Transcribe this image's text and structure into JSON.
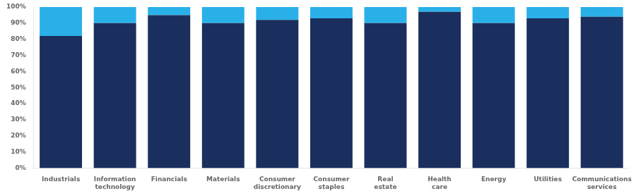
{
  "chart_data": {
    "type": "bar",
    "stacked": true,
    "grid": false,
    "categories": [
      "Industrials",
      "Information\ntechnology",
      "Financials",
      "Materials",
      "Consumer\ndiscretionary",
      "Consumer\nstaples",
      "Real\nestate",
      "Health\ncare",
      "Energy",
      "Utilities",
      "Communications\nservices"
    ],
    "series": [
      {
        "color": "#1b2f5e",
        "values": [
          82,
          90,
          95,
          90,
          92,
          93,
          90,
          97,
          90,
          93,
          94
        ]
      },
      {
        "color": "#2ab0e8",
        "values": [
          18,
          10,
          5,
          10,
          8,
          7,
          10,
          3,
          10,
          7,
          6
        ]
      }
    ],
    "ylim": [
      0,
      100
    ],
    "yticks": [
      {
        "value": 0,
        "label": "0%"
      },
      {
        "value": 10,
        "label": "10%"
      },
      {
        "value": 20,
        "label": "20%"
      },
      {
        "value": 30,
        "label": "30%"
      },
      {
        "value": 40,
        "label": "40%"
      },
      {
        "value": 50,
        "label": "50%"
      },
      {
        "value": 60,
        "label": "60%"
      },
      {
        "value": 70,
        "label": "70%"
      },
      {
        "value": 80,
        "label": "80%"
      },
      {
        "value": 90,
        "label": "90%"
      },
      {
        "value": 100,
        "label": "100%"
      }
    ]
  }
}
